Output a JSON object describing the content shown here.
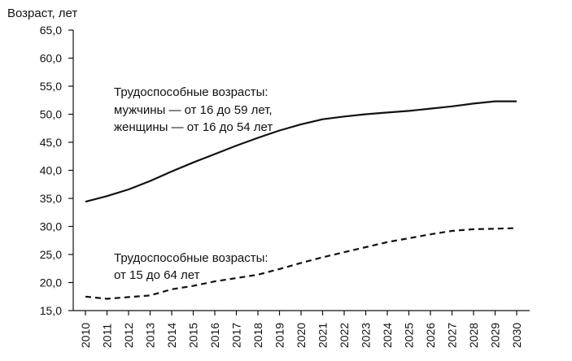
{
  "chart_data": {
    "type": "line",
    "ylabel": "Возраст, лет",
    "xlabel": "",
    "title": "",
    "ylim": [
      15.0,
      65.0
    ],
    "yticks": [
      "15,0",
      "20,0",
      "25,0",
      "30,0",
      "35,0",
      "40,0",
      "45,0",
      "50,0",
      "55,0",
      "60,0",
      "65,0"
    ],
    "categories": [
      "2010",
      "2011",
      "2012",
      "2013",
      "2014",
      "2015",
      "2016",
      "2017",
      "2018",
      "2019",
      "2020",
      "2021",
      "2022",
      "2023",
      "2024",
      "2025",
      "2026",
      "2027",
      "2028",
      "2029",
      "2030"
    ],
    "series": [
      {
        "annotation": [
          "Трудоспособные возрасты:",
          "мужчины — от 16 до 59 лет,",
          "женщины — от 16 до 54 лет"
        ],
        "style": "solid",
        "color": "#111111",
        "values": [
          34.4,
          35.4,
          36.6,
          38.1,
          39.8,
          41.4,
          42.9,
          44.4,
          45.8,
          47.1,
          48.2,
          49.1,
          49.6,
          50.0,
          50.3,
          50.6,
          51.0,
          51.4,
          51.9,
          52.3,
          52.3
        ]
      },
      {
        "annotation": [
          "Трудоспособные возрасты:",
          "от 15 до 64 лет"
        ],
        "style": "dashed",
        "color": "#111111",
        "values": [
          17.5,
          17.1,
          17.4,
          17.7,
          18.8,
          19.4,
          20.2,
          20.8,
          21.4,
          22.4,
          23.5,
          24.5,
          25.4,
          26.3,
          27.2,
          27.9,
          28.6,
          29.2,
          29.5,
          29.6,
          29.7
        ]
      }
    ]
  }
}
